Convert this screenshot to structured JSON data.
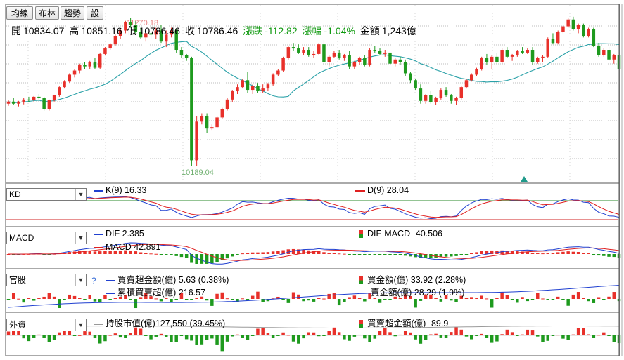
{
  "toolbar": {
    "buttons": [
      "均線",
      "布林",
      "趨勢",
      "設"
    ]
  },
  "ohlc": {
    "open_label": "開",
    "open": "10834.07",
    "high_label": "高",
    "high": "10851.16",
    "low_label": "低",
    "low": "10786.46",
    "close_label": "收",
    "close": "10786.46",
    "change_label": "漲跌",
    "change": "-112.82",
    "pct_label": "漲幅",
    "pct": "-1.04%",
    "amount_label": "金額",
    "amount": "1,243億"
  },
  "price": {
    "high_marker": "11270.18",
    "low_marker": "10189.04"
  },
  "panels": {
    "kd": {
      "selector": "KD",
      "k_label": "K(9) 16.33",
      "d_label": "D(9) 28.04"
    },
    "macd": {
      "selector": "MACD",
      "dif_label": "DIF 2.385",
      "macd_label": "MACD 42.891",
      "osc_label": "DIF-MACD -40.506"
    },
    "official": {
      "selector": "官股",
      "help": "?",
      "net_label": "買賣超金額(億) 5.63 (0.38%)",
      "cum_label": "累積買賣超(億) 216.57",
      "buy_label": "買金額(億) 33.92 (2.28%)",
      "sell_label": "賣金額(億) 28.29 (1.9%)"
    },
    "foreign": {
      "selector": "外資",
      "hold_label": "持股市值(億)127,550 (39.45%)",
      "net_label": "買賣超金額(億) -89.9"
    }
  },
  "colors": {
    "up": "#e8302a",
    "down": "#1e9a1e",
    "ma": "#2aa1a8",
    "k": "#2040d0",
    "d": "#e02020"
  },
  "chart_data": {
    "type": "candlestick",
    "candles": [
      [
        10650,
        10675,
        10635,
        10665
      ],
      [
        10665,
        10690,
        10640,
        10650
      ],
      [
        10650,
        10670,
        10630,
        10660
      ],
      [
        10660,
        10690,
        10645,
        10680
      ],
      [
        10680,
        10700,
        10660,
        10675
      ],
      [
        10675,
        10705,
        10665,
        10700
      ],
      [
        10700,
        10720,
        10680,
        10690
      ],
      [
        10690,
        10700,
        10600,
        10610
      ],
      [
        10610,
        10680,
        10600,
        10675
      ],
      [
        10675,
        10715,
        10665,
        10710
      ],
      [
        10710,
        10775,
        10700,
        10770
      ],
      [
        10770,
        10820,
        10760,
        10810
      ],
      [
        10810,
        10870,
        10800,
        10860
      ],
      [
        10860,
        10900,
        10840,
        10890
      ],
      [
        10890,
        10940,
        10870,
        10930
      ],
      [
        10930,
        10950,
        10900,
        10920
      ],
      [
        10920,
        10960,
        10900,
        10950
      ],
      [
        10950,
        10980,
        10900,
        10910
      ],
      [
        10910,
        11020,
        10900,
        11010
      ],
      [
        11010,
        11060,
        11000,
        11050
      ],
      [
        11050,
        11090,
        11040,
        11080
      ],
      [
        11080,
        11150,
        11070,
        11140
      ],
      [
        11140,
        11190,
        11120,
        11180
      ],
      [
        11180,
        11250,
        11160,
        11240
      ],
      [
        11240,
        11270,
        11200,
        11220
      ],
      [
        11220,
        11250,
        11150,
        11170
      ],
      [
        11170,
        11200,
        11120,
        11130
      ],
      [
        11130,
        11180,
        11100,
        11160
      ],
      [
        11160,
        11190,
        11120,
        11150
      ],
      [
        11150,
        11200,
        11120,
        11180
      ],
      [
        11180,
        11220,
        11090,
        11100
      ],
      [
        11100,
        11180,
        11060,
        11150
      ],
      [
        11150,
        11200,
        11130,
        11180
      ],
      [
        11180,
        11190,
        11020,
        11040
      ],
      [
        11040,
        11060,
        10980,
        11000
      ],
      [
        11000,
        11010,
        10960,
        10980
      ],
      [
        10980,
        10990,
        10200,
        10240
      ],
      [
        10240,
        10560,
        10200,
        10520
      ],
      [
        10520,
        10580,
        10500,
        10560
      ],
      [
        10560,
        10580,
        10440,
        10470
      ],
      [
        10470,
        10500,
        10460,
        10480
      ],
      [
        10480,
        10560,
        10470,
        10550
      ],
      [
        10550,
        10620,
        10540,
        10610
      ],
      [
        10610,
        10690,
        10600,
        10680
      ],
      [
        10680,
        10750,
        10660,
        10740
      ],
      [
        10740,
        10790,
        10720,
        10770
      ],
      [
        10770,
        10830,
        10760,
        10820
      ],
      [
        10820,
        10880,
        10730,
        10750
      ],
      [
        10750,
        10790,
        10720,
        10780
      ],
      [
        10780,
        10800,
        10730,
        10740
      ],
      [
        10740,
        10790,
        10730,
        10760
      ],
      [
        10760,
        10800,
        10740,
        10790
      ],
      [
        10790,
        10870,
        10780,
        10860
      ],
      [
        10860,
        10900,
        10850,
        10890
      ],
      [
        10890,
        10990,
        10880,
        10980
      ],
      [
        10980,
        11070,
        10970,
        11060
      ],
      [
        11060,
        11090,
        11030,
        11050
      ],
      [
        11050,
        11080,
        11010,
        11020
      ],
      [
        11020,
        11060,
        11000,
        11040
      ],
      [
        11040,
        11060,
        10990,
        11000
      ],
      [
        11000,
        11030,
        10980,
        11010
      ],
      [
        11010,
        11090,
        11000,
        11080
      ],
      [
        11080,
        11110,
        10930,
        10950
      ],
      [
        10950,
        11000,
        10920,
        10990
      ],
      [
        10990,
        11030,
        10980,
        11020
      ],
      [
        11020,
        11040,
        10970,
        10980
      ],
      [
        10980,
        11010,
        10960,
        11000
      ],
      [
        11000,
        11030,
        10900,
        10920
      ],
      [
        10920,
        10960,
        10900,
        10950
      ],
      [
        10950,
        10990,
        10930,
        10980
      ],
      [
        10980,
        11000,
        10920,
        10930
      ],
      [
        10930,
        11050,
        10920,
        11040
      ],
      [
        11040,
        11070,
        11020,
        11030
      ],
      [
        11030,
        11050,
        11000,
        11010
      ],
      [
        11010,
        11040,
        10990,
        11020
      ],
      [
        11020,
        11050,
        10930,
        10940
      ],
      [
        10940,
        10980,
        10920,
        10970
      ],
      [
        10970,
        10990,
        10930,
        10950
      ],
      [
        10950,
        10970,
        10850,
        10870
      ],
      [
        10870,
        10880,
        10800,
        10820
      ],
      [
        10820,
        10830,
        10750,
        10760
      ],
      [
        10760,
        10790,
        10650,
        10670
      ],
      [
        10670,
        10720,
        10650,
        10710
      ],
      [
        10710,
        10740,
        10650,
        10660
      ],
      [
        10660,
        10700,
        10640,
        10690
      ],
      [
        10690,
        10760,
        10680,
        10750
      ],
      [
        10750,
        10770,
        10700,
        10710
      ],
      [
        10710,
        10720,
        10650,
        10670
      ],
      [
        10670,
        10700,
        10640,
        10690
      ],
      [
        10690,
        10780,
        10680,
        10770
      ],
      [
        10770,
        10830,
        10760,
        10820
      ],
      [
        10820,
        10870,
        10810,
        10860
      ],
      [
        10860,
        10910,
        10850,
        10900
      ],
      [
        10900,
        10990,
        10890,
        10980
      ],
      [
        10980,
        11010,
        10930,
        10950
      ],
      [
        10950,
        11000,
        10900,
        10990
      ],
      [
        10990,
        11020,
        10940,
        10950
      ],
      [
        10950,
        11050,
        10940,
        11040
      ],
      [
        11040,
        11060,
        10980,
        10990
      ],
      [
        10990,
        11010,
        10960,
        11000
      ],
      [
        11000,
        11040,
        10990,
        11030
      ],
      [
        11030,
        11060,
        11010,
        11020
      ],
      [
        11020,
        11050,
        11010,
        11040
      ],
      [
        11040,
        11060,
        10930,
        10950
      ],
      [
        10950,
        10990,
        10940,
        10980
      ],
      [
        10980,
        11000,
        10950,
        10990
      ],
      [
        10990,
        11130,
        10980,
        11120
      ],
      [
        11120,
        11160,
        11080,
        11090
      ],
      [
        11090,
        11180,
        11080,
        11170
      ],
      [
        11170,
        11220,
        11160,
        11210
      ],
      [
        11210,
        11270,
        11200,
        11260
      ],
      [
        11260,
        11280,
        11180,
        11190
      ],
      [
        11190,
        11230,
        11160,
        11220
      ],
      [
        11220,
        11230,
        11130,
        11140
      ],
      [
        11140,
        11200,
        11130,
        11190
      ],
      [
        11190,
        11200,
        11060,
        11070
      ],
      [
        11070,
        11090,
        10990,
        11000
      ],
      [
        11000,
        11050,
        10990,
        11040
      ],
      [
        11040,
        11060,
        10960,
        10970
      ],
      [
        10970,
        11010,
        10940,
        11000
      ],
      [
        11000,
        11010,
        10880,
        10900
      ]
    ]
  }
}
